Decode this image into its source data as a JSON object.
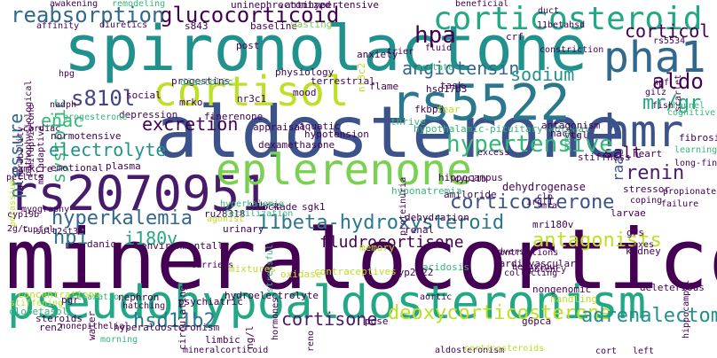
{
  "words": [
    {
      "text": "mineralocorticoid",
      "color": "#440154"
    },
    {
      "text": "spironolactone",
      "color": "#20918c"
    },
    {
      "text": "aldosterone",
      "color": "#3b528b"
    },
    {
      "text": "pseudohypoaldosteronism",
      "color": "#22a884"
    },
    {
      "text": "rs2070951",
      "color": "#481a6c"
    },
    {
      "text": "eplerenone",
      "color": "#7ad151"
    },
    {
      "text": "cortisol",
      "color": "#bddf26"
    },
    {
      "text": "rs5522",
      "color": "#2a788e"
    },
    {
      "text": "corticosteroid",
      "color": "#22a884"
    },
    {
      "text": "hmr",
      "color": "#3b528b"
    },
    {
      "text": "pha1",
      "color": "#31688e"
    },
    {
      "text": "glucocorticoid",
      "color": "#440154"
    },
    {
      "text": "reabsorption",
      "color": "#31688e"
    },
    {
      "text": "hpa",
      "color": "#440154"
    },
    {
      "text": "corticol",
      "color": "#440154"
    },
    {
      "text": "aldo",
      "color": "#440154"
    },
    {
      "text": "mr/gr",
      "color": "#22a884"
    },
    {
      "text": "angiotensin",
      "color": "#31688e"
    },
    {
      "text": "sodium",
      "color": "#21918c"
    },
    {
      "text": "s810l",
      "color": "#414487"
    },
    {
      "text": "pressure",
      "color": "#31688e"
    },
    {
      "text": "systolic",
      "color": "#35b779"
    },
    {
      "text": "enac",
      "color": "#35b779"
    },
    {
      "text": "excretion",
      "color": "#440154"
    },
    {
      "text": "electrolyte",
      "color": "#21918c"
    },
    {
      "text": "raas",
      "color": "#3b528b"
    },
    {
      "text": "salt",
      "color": "#440154"
    },
    {
      "text": "hypertensive",
      "color": "#35b779"
    },
    {
      "text": "renin",
      "color": "#481a6c"
    },
    {
      "text": "hyperkalemia",
      "color": "#31688e"
    },
    {
      "text": "11beta-hydroxysteroid",
      "color": "#2a788e"
    },
    {
      "text": "corticosterone",
      "color": "#3b528b"
    },
    {
      "text": "hpi",
      "color": "#2a788e"
    },
    {
      "text": "i180v",
      "color": "#22a884"
    },
    {
      "text": "fludrocortisone",
      "color": "#440154"
    },
    {
      "text": "antagonists",
      "color": "#bddf26"
    },
    {
      "text": "hsd11b2",
      "color": "#2a788e"
    },
    {
      "text": "cortisone",
      "color": "#481a6c"
    },
    {
      "text": "deoxycorticosterone",
      "color": "#bddf26"
    },
    {
      "text": "adrenalectomy",
      "color": "#21918c"
    },
    {
      "text": "hippocampus",
      "color": "#440154"
    },
    {
      "text": "dehydrogenase",
      "color": "#440154"
    },
    {
      "text": "amiloride",
      "color": "#440154"
    },
    {
      "text": "hyponatremia",
      "color": "#35b779"
    },
    {
      "text": "dexamethasone",
      "color": "#440154"
    },
    {
      "text": "progestins",
      "color": "#440154"
    },
    {
      "text": "diastolic",
      "color": "#35b779"
    },
    {
      "text": "baseline",
      "color": "#440154"
    },
    {
      "text": "diuretics",
      "color": "#440154"
    },
    {
      "text": "antihypertensive",
      "color": "#440154"
    },
    {
      "text": "uninephrectomized",
      "color": "#440154"
    },
    {
      "text": "wasting",
      "color": "#7ad151"
    },
    {
      "text": "anxiety",
      "color": "#440154"
    },
    {
      "text": "trier",
      "color": "#440154"
    },
    {
      "text": "constriction",
      "color": "#440154"
    },
    {
      "text": "flame",
      "color": "#440154"
    },
    {
      "text": "hsd17b3",
      "color": "#440154"
    },
    {
      "text": "mood",
      "color": "#440154"
    },
    {
      "text": "terrestrial",
      "color": "#440154"
    },
    {
      "text": "fkbp5",
      "color": "#440154"
    },
    {
      "text": "fear",
      "color": "#bddf26"
    },
    {
      "text": "thrive",
      "color": "#35b779"
    },
    {
      "text": "hypothalamic-pituitary-adrenal",
      "color": "#35b779"
    },
    {
      "text": "antagonism",
      "color": "#440154"
    },
    {
      "text": "hypotension",
      "color": "#440154"
    },
    {
      "text": "aquatic",
      "color": "#440154"
    },
    {
      "text": "appraisal",
      "color": "#440154"
    },
    {
      "text": "finerenone",
      "color": "#440154"
    },
    {
      "text": "nacl",
      "color": "#440154"
    },
    {
      "text": "vtgl",
      "color": "#440154"
    },
    {
      "text": "stiffness",
      "color": "#440154"
    },
    {
      "text": "stressor",
      "color": "#440154"
    },
    {
      "text": "heart",
      "color": "#440154"
    },
    {
      "text": "excess",
      "color": "#440154"
    },
    {
      "text": "plasma",
      "color": "#440154"
    },
    {
      "text": "emotional",
      "color": "#440154"
    },
    {
      "text": "camkcre",
      "color": "#440154"
    },
    {
      "text": "normotensive",
      "color": "#440154"
    },
    {
      "text": "depression",
      "color": "#440154"
    },
    {
      "text": "social",
      "color": "#440154"
    },
    {
      "text": "mrko",
      "color": "#440154"
    },
    {
      "text": "nr3c1",
      "color": "#440154"
    },
    {
      "text": "physiology",
      "color": "#440154"
    },
    {
      "text": "post",
      "color": "#440154"
    },
    {
      "text": "s843",
      "color": "#440154"
    },
    {
      "text": "sgk1",
      "color": "#440154"
    },
    {
      "text": "shrsp",
      "color": "#440154"
    },
    {
      "text": "urinary",
      "color": "#440154"
    },
    {
      "text": "ru28318",
      "color": "#440154"
    },
    {
      "text": "environmentally",
      "color": "#440154"
    },
    {
      "text": "danio",
      "color": "#440154"
    },
    {
      "text": "blockade",
      "color": "#440154"
    },
    {
      "text": "dehydration",
      "color": "#440154"
    },
    {
      "text": "memory",
      "color": "#bddf26"
    },
    {
      "text": "renal",
      "color": "#440154"
    },
    {
      "text": "mri180v",
      "color": "#440154"
    },
    {
      "text": "grs",
      "color": "#440154"
    },
    {
      "text": "kidney",
      "color": "#440154"
    },
    {
      "text": "larvae",
      "color": "#440154"
    },
    {
      "text": "fibrosis",
      "color": "#440154"
    },
    {
      "text": "learning",
      "color": "#35b779"
    },
    {
      "text": "long-fin",
      "color": "#440154"
    },
    {
      "text": "channel",
      "color": "#35b779"
    },
    {
      "text": "cognitive",
      "color": "#35b779"
    },
    {
      "text": "fish",
      "color": "#440154"
    },
    {
      "text": "hpf",
      "color": "#440154"
    },
    {
      "text": "gilz",
      "color": "#440154"
    },
    {
      "text": "task",
      "color": "#440154"
    },
    {
      "text": "acetate",
      "color": "#35b779"
    },
    {
      "text": "fluid",
      "color": "#440154"
    },
    {
      "text": "crf",
      "color": "#440154"
    },
    {
      "text": "rs5534",
      "color": "#440154"
    },
    {
      "text": "pomc",
      "color": "#35b779"
    },
    {
      "text": "duct",
      "color": "#440154"
    },
    {
      "text": "awakening",
      "color": "#440154"
    },
    {
      "text": "remodeling",
      "color": "#35b779"
    },
    {
      "text": "beneficial",
      "color": "#440154"
    },
    {
      "text": "affinity",
      "color": "#440154"
    },
    {
      "text": "hpg",
      "color": "#440154"
    },
    {
      "text": "nadph",
      "color": "#440154"
    },
    {
      "text": "cardiac",
      "color": "#440154"
    },
    {
      "text": "progesterone",
      "color": "#35b779"
    },
    {
      "text": "vulnerability",
      "color": "#440154"
    },
    {
      "text": "pathophysiological",
      "color": "#440154"
    },
    {
      "text": "maladaptive",
      "color": "#440154"
    },
    {
      "text": "mifepristone",
      "color": "#440154"
    },
    {
      "text": "potassium",
      "color": "#bddf26"
    },
    {
      "text": "pellets",
      "color": "#440154"
    },
    {
      "text": "myography",
      "color": "#440154"
    },
    {
      "text": "sult2st3",
      "color": "#440154"
    },
    {
      "text": "cyp19b",
      "color": "#440154"
    },
    {
      "text": "tupfel",
      "color": "#440154"
    },
    {
      "text": "2g/c",
      "color": "#440154"
    },
    {
      "text": "agonist",
      "color": "#bddf26"
    },
    {
      "text": "hyperkalemia",
      "color": "#35b779"
    },
    {
      "text": "fertilization",
      "color": "#35b779"
    },
    {
      "text": "stressful",
      "color": "#35b779"
    },
    {
      "text": "clo",
      "color": "#440154"
    },
    {
      "text": "cyp11b",
      "color": "#440154"
    },
    {
      "text": "irgl1",
      "color": "#440154"
    },
    {
      "text": "mra",
      "color": "#440154"
    },
    {
      "text": "adverse",
      "color": "#440154"
    },
    {
      "text": "collecting",
      "color": "#440154"
    },
    {
      "text": "behaviour",
      "color": "#440154"
    },
    {
      "text": "contractions",
      "color": "#440154"
    },
    {
      "text": "potency",
      "color": "#440154"
    },
    {
      "text": "axes",
      "color": "#440154"
    },
    {
      "text": "propionate",
      "color": "#440154"
    },
    {
      "text": "failure",
      "color": "#440154"
    },
    {
      "text": "coping",
      "color": "#440154"
    },
    {
      "text": "hippocampal",
      "color": "#440154"
    },
    {
      "text": "deleterious",
      "color": "#440154"
    },
    {
      "text": "handling",
      "color": "#bddf26"
    },
    {
      "text": "nongenomic",
      "color": "#440154"
    },
    {
      "text": "cardiovascular",
      "color": "#440154"
    },
    {
      "text": "acidosis",
      "color": "#35b779"
    },
    {
      "text": "aortic",
      "color": "#440154"
    },
    {
      "text": "cyp2k22",
      "color": "#440154"
    },
    {
      "text": "pose",
      "color": "#440154"
    },
    {
      "text": "g6pca",
      "color": "#440154"
    },
    {
      "text": "contraceptives",
      "color": "#bddf26"
    },
    {
      "text": "hydroelectrolyte",
      "color": "#440154"
    },
    {
      "text": "psychiatric",
      "color": "#440154"
    },
    {
      "text": "circulating",
      "color": "#440154"
    },
    {
      "text": "water",
      "color": "#440154"
    },
    {
      "text": "nephron",
      "color": "#440154"
    },
    {
      "text": "pgr",
      "color": "#440154"
    },
    {
      "text": "hatching",
      "color": "#440154"
    },
    {
      "text": "concentrations",
      "color": "#bddf26"
    },
    {
      "text": "clobetasol",
      "color": "#35b779"
    },
    {
      "text": "nonepithelial",
      "color": "#440154"
    },
    {
      "text": "steroids",
      "color": "#440154"
    },
    {
      "text": "ren2",
      "color": "#440154"
    },
    {
      "text": "hyperaldosteronism",
      "color": "#440154"
    },
    {
      "text": "limbic",
      "color": "#440154"
    },
    {
      "text": "mineralcorticoid",
      "color": "#440154"
    },
    {
      "text": "aldosteronism",
      "color": "#440154"
    },
    {
      "text": "corticosteroids",
      "color": "#bddf26"
    },
    {
      "text": "left",
      "color": "#440154"
    },
    {
      "text": "cort",
      "color": "#440154"
    },
    {
      "text": "morning",
      "color": "#35b779"
    },
    {
      "text": "carriers",
      "color": "#440154"
    },
    {
      "text": "mixtures",
      "color": "#bddf26"
    },
    {
      "text": "stiffening",
      "color": "#bddf26"
    },
    {
      "text": "relaxation",
      "color": "#35b779"
    },
    {
      "text": "hormones",
      "color": "#440154"
    },
    {
      "text": "reno",
      "color": "#440154"
    },
    {
      "text": "ng/l",
      "color": "#440154"
    },
    {
      "text": "proteinuria",
      "color": "#440154"
    },
    {
      "text": "11betahsd",
      "color": "#440154"
    },
    {
      "text": "nr3c2",
      "color": "#bddf26"
    },
    {
      "text": "oxidase",
      "color": "#bddf26"
    },
    {
      "text": "scarlet",
      "color": "#440154"
    },
    {
      "text": "adrenalectomized",
      "color": "#440154"
    },
    {
      "text": "11betahsd1",
      "color": "#440154"
    },
    {
      "text": "axis",
      "color": "#440154"
    },
    {
      "text": "ru26752",
      "color": "#440154"
    }
  ]
}
